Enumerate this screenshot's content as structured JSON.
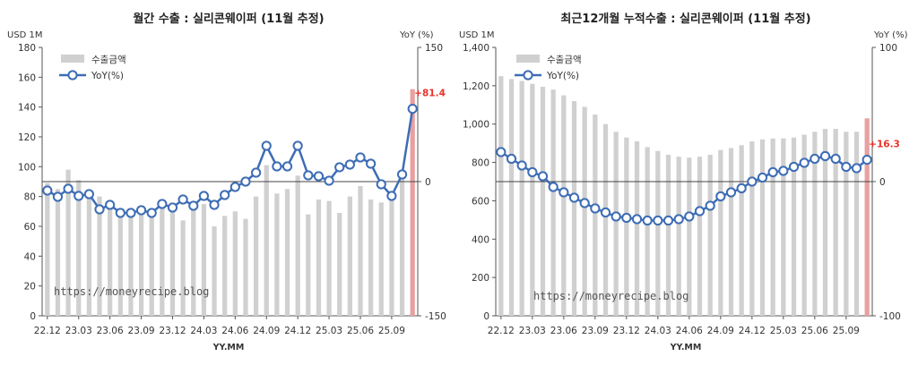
{
  "chart_data": [
    {
      "type": "bar+line",
      "title": "월간 수출 : 실리콘웨이퍼 (11월 추정)",
      "ylabel_left": "USD 1M",
      "ylabel_right": "YoY (%)",
      "xlabel": "YY.MM",
      "ylim_left": [
        0,
        180
      ],
      "yticks_left": [
        "0",
        "20",
        "40",
        "60",
        "80",
        "100",
        "120",
        "140",
        "160",
        "180"
      ],
      "ylim_right": [
        -150,
        150
      ],
      "yticks_right": [
        "-150",
        "0",
        "150"
      ],
      "x_tick_labels": [
        "22.12",
        "23.03",
        "23.06",
        "23.09",
        "23.12",
        "24.03",
        "24.06",
        "24.09",
        "24.12",
        "25.03",
        "25.06",
        "25.09"
      ],
      "categories": [
        "22.12",
        "23.01",
        "23.02",
        "23.03",
        "23.04",
        "23.05",
        "23.06",
        "23.07",
        "23.08",
        "23.09",
        "23.10",
        "23.11",
        "23.12",
        "24.01",
        "24.02",
        "24.03",
        "24.04",
        "24.05",
        "24.06",
        "24.07",
        "24.08",
        "24.09",
        "24.10",
        "24.11",
        "24.12",
        "25.01",
        "25.02",
        "25.03",
        "25.04",
        "25.05",
        "25.06",
        "25.07",
        "25.08",
        "25.09",
        "25.10",
        "25.11"
      ],
      "legend": [
        "수출금액",
        "YoY(%)"
      ],
      "legend_position": "top-left",
      "series": [
        {
          "name": "수출금액",
          "axis": "left",
          "kind": "bar",
          "color": "#d0d0d0",
          "values": [
            89,
            85,
            98,
            91,
            82,
            80,
            75,
            70,
            67,
            68,
            70,
            73,
            71,
            64,
            72,
            75,
            60,
            67,
            70,
            65,
            80,
            101,
            82,
            85,
            94,
            68,
            78,
            77,
            69,
            80,
            87,
            78,
            76,
            82,
            92,
            152
          ]
        },
        {
          "name": "YoY(%)",
          "axis": "right",
          "kind": "line",
          "color": "#3e6db5",
          "values": [
            -10,
            -17,
            -8,
            -16,
            -14,
            -31,
            -26,
            -35,
            -35,
            -32,
            -35,
            -25,
            -29,
            -20,
            -27,
            -16,
            -26,
            -15,
            -6,
            0,
            10,
            40,
            17,
            17,
            40,
            7,
            6,
            1,
            16,
            19,
            27,
            20,
            -3,
            -16,
            8,
            81.4
          ]
        }
      ],
      "annotations": [
        {
          "series": "YoY(%)",
          "category": "25.11",
          "text": "+81.4",
          "color": "#e8332a"
        }
      ],
      "highlight_bar": {
        "category": "25.11",
        "color": "#e8a0a0"
      },
      "reference_line": {
        "axis": "right",
        "value": 0
      },
      "watermark": "https://moneyrecipe.blog"
    },
    {
      "type": "bar+line",
      "title": "최근12개월 누적수출 : 실리콘웨이퍼 (11월 추정)",
      "ylabel_left": "USD 1M",
      "ylabel_right": "YoY (%)",
      "xlabel": "YY.MM",
      "ylim_left": [
        0,
        1400
      ],
      "yticks_left": [
        "0",
        "200",
        "400",
        "600",
        "800",
        "1,000",
        "1,200",
        "1,400"
      ],
      "ylim_right": [
        -100,
        100
      ],
      "yticks_right": [
        "-100",
        "0",
        "100"
      ],
      "x_tick_labels": [
        "22.12",
        "23.03",
        "23.06",
        "23.09",
        "23.12",
        "24.03",
        "24.06",
        "24.09",
        "24.12",
        "25.03",
        "25.06",
        "25.09"
      ],
      "categories": [
        "22.12",
        "23.01",
        "23.02",
        "23.03",
        "23.04",
        "23.05",
        "23.06",
        "23.07",
        "23.08",
        "23.09",
        "23.10",
        "23.11",
        "23.12",
        "24.01",
        "24.02",
        "24.03",
        "24.04",
        "24.05",
        "24.06",
        "24.07",
        "24.08",
        "24.09",
        "24.10",
        "24.11",
        "24.12",
        "25.01",
        "25.02",
        "25.03",
        "25.04",
        "25.05",
        "25.06",
        "25.07",
        "25.08",
        "25.09",
        "25.10",
        "25.11"
      ],
      "legend": [
        "수출금액",
        "YoY(%)"
      ],
      "legend_position": "top-left",
      "series": [
        {
          "name": "수출금액",
          "axis": "left",
          "kind": "bar",
          "color": "#d0d0d0",
          "values": [
            1250,
            1235,
            1225,
            1210,
            1195,
            1180,
            1150,
            1120,
            1090,
            1050,
            1000,
            960,
            930,
            910,
            880,
            860,
            840,
            830,
            825,
            830,
            840,
            865,
            875,
            890,
            910,
            920,
            925,
            925,
            930,
            945,
            960,
            975,
            975,
            960,
            960,
            1030
          ]
        },
        {
          "name": "YoY(%)",
          "axis": "right",
          "kind": "line",
          "color": "#3e6db5",
          "values": [
            22,
            17,
            12,
            7,
            4,
            -4,
            -8,
            -12,
            -16,
            -20,
            -23,
            -26,
            -27,
            -28,
            -29,
            -29,
            -29,
            -28,
            -26,
            -22,
            -18,
            -11,
            -8,
            -5,
            0,
            3,
            7,
            8,
            11,
            14,
            17,
            19,
            17,
            11,
            10,
            16.3
          ]
        }
      ],
      "annotations": [
        {
          "series": "YoY(%)",
          "category": "25.11",
          "text": "+16.3",
          "color": "#e8332a"
        }
      ],
      "highlight_bar": {
        "category": "25.11",
        "color": "#e8a0a0"
      },
      "reference_line": {
        "axis": "right",
        "value": 0
      },
      "watermark": "https://moneyrecipe.blog"
    }
  ]
}
